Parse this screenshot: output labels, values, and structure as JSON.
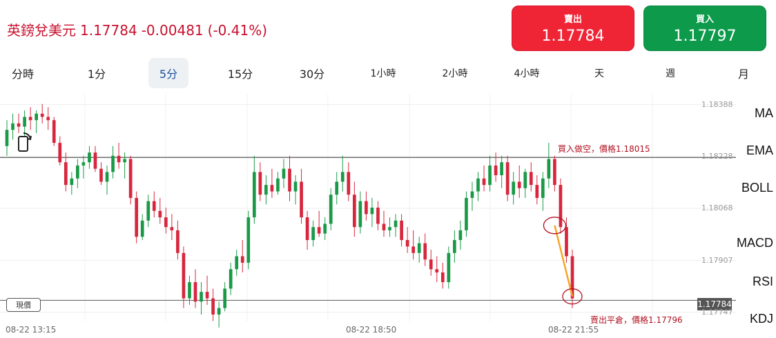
{
  "header": {
    "pair": "英鎊兌美元",
    "price": "1.17784",
    "change": "-0.00481",
    "change_pct": "(-0.41%)"
  },
  "trade": {
    "sell_label": "賣出",
    "sell_price": "1.17784",
    "buy_label": "買入",
    "buy_price": "1.17797"
  },
  "tabs": [
    "分時",
    "1分",
    "5分",
    "15分",
    "30分",
    "1小時",
    "2小時",
    "4小時",
    "天",
    "週",
    "月"
  ],
  "active_tab": "5分",
  "indicators": [
    "MA",
    "EMA",
    "BOLL",
    "MACD",
    "RSI",
    "KDJ"
  ],
  "colors": {
    "up": "#1a9a47",
    "down": "#d7263d",
    "accent": "#1a4e9e",
    "trend_line": "#f5a623"
  },
  "annotations": {
    "entry": "買入做空，價格1.18015",
    "exit": "賣出平倉，價格1.17796"
  },
  "current_price_label": "現價",
  "current_price": "1.17784",
  "chart_data": {
    "type": "candlestick",
    "y_ticks": [
      "1.18388",
      "1.18228",
      "1.18068",
      "1.17907",
      "1.17747"
    ],
    "x_ticks": [
      "08-22 13:15",
      "08-22 18:50",
      "08-22 21:55"
    ],
    "ylim": [
      1.1774,
      1.184
    ],
    "grid": true,
    "horizontal_lines": [
      1.18225,
      1.17784
    ],
    "candles": [
      [
        1.1826,
        1.1834,
        1.1823,
        1.1831
      ],
      [
        1.1831,
        1.1836,
        1.1828,
        1.1833
      ],
      [
        1.1833,
        1.1836,
        1.183,
        1.1832
      ],
      [
        1.1832,
        1.1837,
        1.1829,
        1.1835
      ],
      [
        1.1835,
        1.1838,
        1.1831,
        1.1834
      ],
      [
        1.1834,
        1.1837,
        1.183,
        1.1836
      ],
      [
        1.1836,
        1.1839,
        1.1833,
        1.1835
      ],
      [
        1.1835,
        1.1838,
        1.1831,
        1.1834
      ],
      [
        1.1834,
        1.1835,
        1.1826,
        1.1827
      ],
      [
        1.1827,
        1.1829,
        1.182,
        1.1821
      ],
      [
        1.1821,
        1.1824,
        1.1812,
        1.1814
      ],
      [
        1.1814,
        1.1818,
        1.1811,
        1.1816
      ],
      [
        1.1816,
        1.1822,
        1.1813,
        1.182
      ],
      [
        1.182,
        1.1823,
        1.1816,
        1.1821
      ],
      [
        1.1821,
        1.1826,
        1.1819,
        1.1824
      ],
      [
        1.1824,
        1.1826,
        1.1818,
        1.1819
      ],
      [
        1.1819,
        1.1821,
        1.1814,
        1.1815
      ],
      [
        1.1815,
        1.182,
        1.1811,
        1.1818
      ],
      [
        1.1818,
        1.1826,
        1.1816,
        1.1823
      ],
      [
        1.1823,
        1.1827,
        1.1819,
        1.1821
      ],
      [
        1.1821,
        1.1824,
        1.1816,
        1.1822
      ],
      [
        1.1822,
        1.1823,
        1.1808,
        1.181
      ],
      [
        1.181,
        1.1812,
        1.1796,
        1.1798
      ],
      [
        1.1798,
        1.1805,
        1.1797,
        1.1803
      ],
      [
        1.1803,
        1.1811,
        1.1801,
        1.1809
      ],
      [
        1.1809,
        1.1812,
        1.1804,
        1.1806
      ],
      [
        1.1806,
        1.181,
        1.1802,
        1.1804
      ],
      [
        1.1804,
        1.1807,
        1.1799,
        1.1801
      ],
      [
        1.1801,
        1.1805,
        1.1797,
        1.18
      ],
      [
        1.18,
        1.1803,
        1.1791,
        1.1793
      ],
      [
        1.1793,
        1.1795,
        1.1776,
        1.1779
      ],
      [
        1.1779,
        1.1786,
        1.1777,
        1.1784
      ],
      [
        1.1784,
        1.1788,
        1.1776,
        1.1778
      ],
      [
        1.1778,
        1.1784,
        1.1774,
        1.1781
      ],
      [
        1.1781,
        1.1786,
        1.1777,
        1.1779
      ],
      [
        1.1779,
        1.1782,
        1.1772,
        1.1774
      ],
      [
        1.1774,
        1.1778,
        1.177,
        1.1776
      ],
      [
        1.1776,
        1.1784,
        1.1775,
        1.1782
      ],
      [
        1.1782,
        1.179,
        1.178,
        1.1788
      ],
      [
        1.1788,
        1.1794,
        1.1786,
        1.1792
      ],
      [
        1.1792,
        1.1797,
        1.1787,
        1.179
      ],
      [
        1.179,
        1.1806,
        1.1788,
        1.1804
      ],
      [
        1.1804,
        1.1823,
        1.1802,
        1.1818
      ],
      [
        1.1818,
        1.1821,
        1.1809,
        1.1811
      ],
      [
        1.1811,
        1.1817,
        1.1808,
        1.1814
      ],
      [
        1.1814,
        1.1819,
        1.181,
        1.1812
      ],
      [
        1.1812,
        1.1818,
        1.1811,
        1.1816
      ],
      [
        1.1816,
        1.1822,
        1.1813,
        1.1819
      ],
      [
        1.1819,
        1.1823,
        1.1809,
        1.1812
      ],
      [
        1.1812,
        1.1817,
        1.1808,
        1.1815
      ],
      [
        1.1815,
        1.1819,
        1.1802,
        1.1804
      ],
      [
        1.1804,
        1.1806,
        1.1794,
        1.1797
      ],
      [
        1.1797,
        1.1803,
        1.1795,
        1.1801
      ],
      [
        1.1801,
        1.1806,
        1.1798,
        1.1799
      ],
      [
        1.1799,
        1.1804,
        1.1797,
        1.1802
      ],
      [
        1.1802,
        1.1813,
        1.18,
        1.1811
      ],
      [
        1.1811,
        1.1818,
        1.1808,
        1.1815
      ],
      [
        1.1815,
        1.1823,
        1.1812,
        1.1818
      ],
      [
        1.1818,
        1.1821,
        1.1809,
        1.1811
      ],
      [
        1.1811,
        1.1815,
        1.1798,
        1.1801
      ],
      [
        1.1801,
        1.1812,
        1.1799,
        1.1809
      ],
      [
        1.1809,
        1.1812,
        1.1803,
        1.1805
      ],
      [
        1.1805,
        1.181,
        1.1801,
        1.1807
      ],
      [
        1.1807,
        1.1809,
        1.18,
        1.1802
      ],
      [
        1.1802,
        1.1806,
        1.1798,
        1.18
      ],
      [
        1.18,
        1.1804,
        1.1798,
        1.1801
      ],
      [
        1.1801,
        1.1805,
        1.1798,
        1.1803
      ],
      [
        1.1803,
        1.1805,
        1.1795,
        1.1797
      ],
      [
        1.1797,
        1.1801,
        1.1793,
        1.1795
      ],
      [
        1.1795,
        1.18,
        1.1791,
        1.1793
      ],
      [
        1.1793,
        1.1798,
        1.179,
        1.1796
      ],
      [
        1.1796,
        1.1799,
        1.1789,
        1.1791
      ],
      [
        1.1791,
        1.1794,
        1.1786,
        1.1788
      ],
      [
        1.1788,
        1.1792,
        1.1784,
        1.1787
      ],
      [
        1.1787,
        1.179,
        1.1782,
        1.1784
      ],
      [
        1.1784,
        1.1795,
        1.1782,
        1.1793
      ],
      [
        1.1793,
        1.18,
        1.179,
        1.1797
      ],
      [
        1.1797,
        1.1803,
        1.1794,
        1.18
      ],
      [
        1.18,
        1.1812,
        1.1798,
        1.181
      ],
      [
        1.181,
        1.1815,
        1.1806,
        1.1812
      ],
      [
        1.1812,
        1.1818,
        1.1809,
        1.1816
      ],
      [
        1.1816,
        1.182,
        1.1812,
        1.1814
      ],
      [
        1.1814,
        1.1823,
        1.1812,
        1.182
      ],
      [
        1.182,
        1.1824,
        1.1815,
        1.1817
      ],
      [
        1.1817,
        1.1823,
        1.1813,
        1.1821
      ],
      [
        1.1821,
        1.1823,
        1.1809,
        1.1811
      ],
      [
        1.1811,
        1.1818,
        1.1808,
        1.1815
      ],
      [
        1.1815,
        1.182,
        1.181,
        1.1813
      ],
      [
        1.1813,
        1.1819,
        1.181,
        1.1818
      ],
      [
        1.1818,
        1.1821,
        1.1812,
        1.1814
      ],
      [
        1.1814,
        1.1817,
        1.1808,
        1.181
      ],
      [
        1.181,
        1.1818,
        1.1806,
        1.1816
      ],
      [
        1.1816,
        1.1827,
        1.1813,
        1.1822
      ],
      [
        1.1822,
        1.1823,
        1.1812,
        1.1814
      ],
      [
        1.1814,
        1.1816,
        1.1799,
        1.1801
      ],
      [
        1.1801,
        1.1804,
        1.179,
        1.1792
      ],
      [
        1.1792,
        1.1794,
        1.1776,
        1.1779
      ]
    ],
    "trades": [
      {
        "side": "short entry",
        "price": 1.18015
      },
      {
        "side": "close",
        "price": 1.17796
      }
    ]
  }
}
